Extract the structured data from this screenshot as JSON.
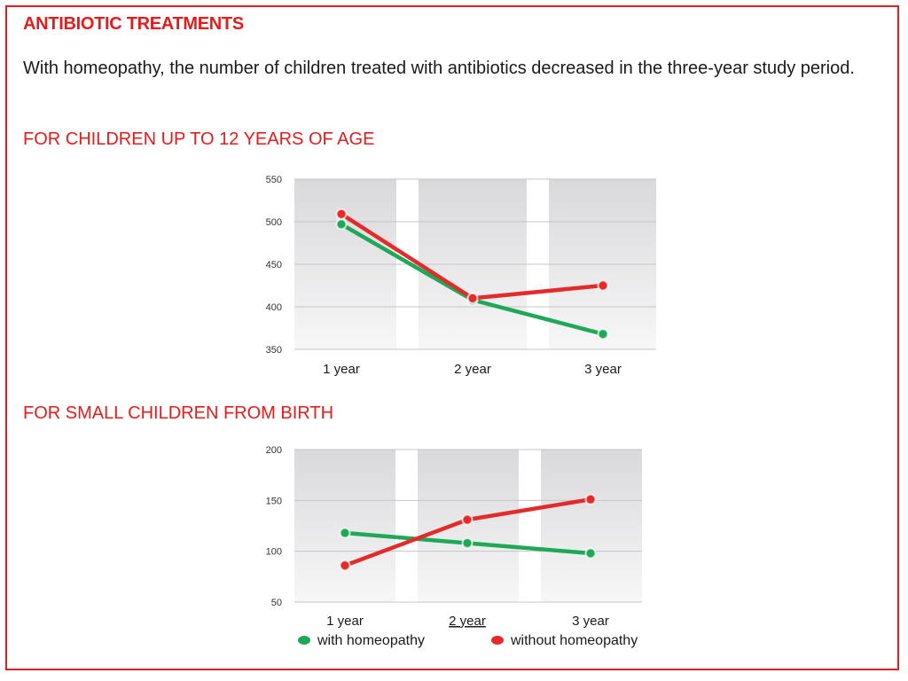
{
  "title": "ANTIBIOTIC TREATMENTS",
  "intro": "With homeopathy, the number of children treated with antibiotics decreased in the three-year study period.",
  "colors": {
    "accent": "#e41c1c",
    "with_homeopathy": "#1fa857",
    "without_homeopathy": "#e42a2a"
  },
  "chart_data": [
    {
      "type": "line",
      "title": "FOR CHILDREN UP TO 12 YEARS OF AGE",
      "categories": [
        "1 year",
        "2 year",
        "3 year"
      ],
      "ylim": [
        350,
        550
      ],
      "yticks": [
        350,
        400,
        450,
        500,
        550
      ],
      "grid": true,
      "series": [
        {
          "name": "with homeopathy",
          "values": [
            497,
            408,
            368
          ]
        },
        {
          "name": "without homeopathy",
          "values": [
            509,
            410,
            425
          ]
        }
      ]
    },
    {
      "type": "line",
      "title": "FOR SMALL CHILDREN FROM BIRTH",
      "categories": [
        "1 year",
        "2 year",
        "3 year"
      ],
      "ylim": [
        50,
        200
      ],
      "yticks": [
        50,
        100,
        150,
        200
      ],
      "grid": true,
      "series": [
        {
          "name": "with homeopathy",
          "values": [
            118,
            108,
            98
          ]
        },
        {
          "name": "without homeopathy",
          "values": [
            86,
            131,
            151
          ]
        }
      ],
      "legend": "bottom"
    }
  ]
}
